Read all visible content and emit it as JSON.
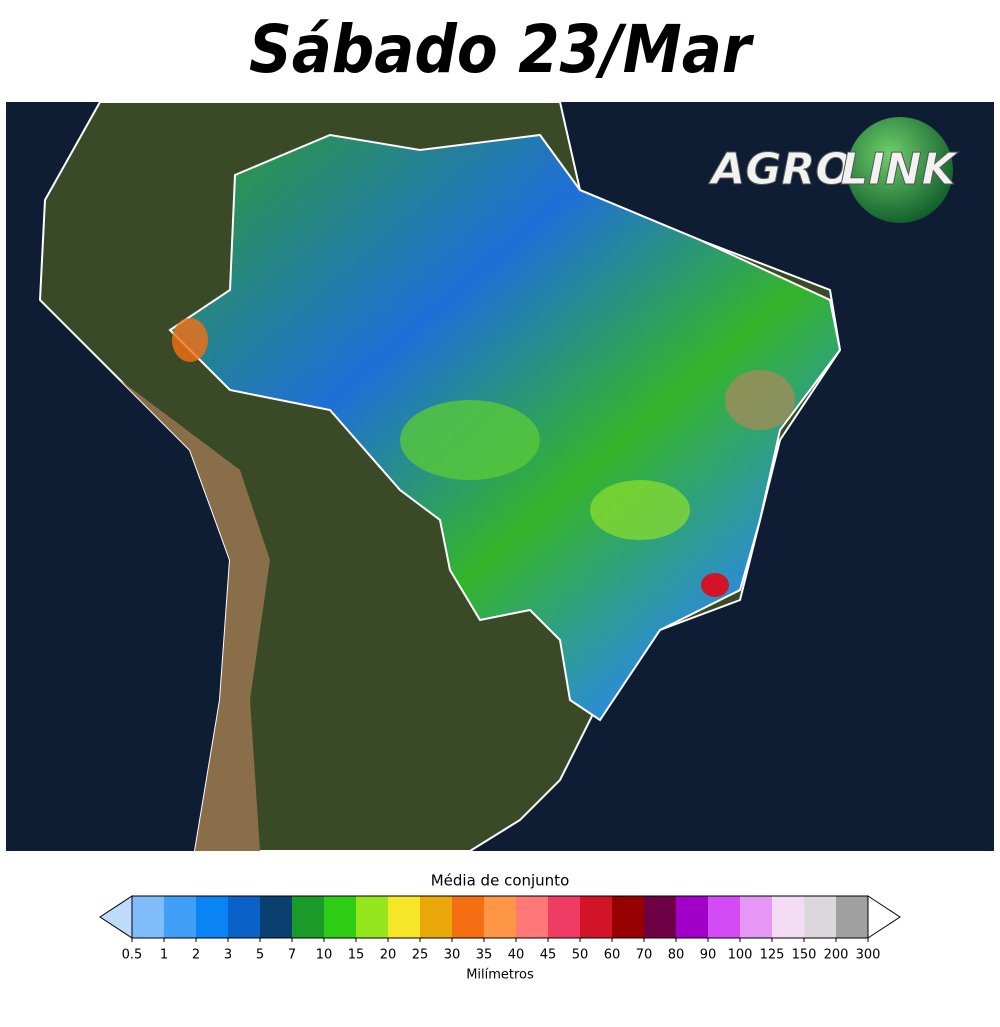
{
  "header": {
    "title": "Sábado 23/Mar"
  },
  "logo": {
    "left": "AGRO",
    "right": "LINK"
  },
  "colorbar": {
    "label": "Média de conjunto",
    "unit": "Milímetros",
    "ticks": [
      0.5,
      1,
      2,
      3,
      5,
      7,
      10,
      15,
      20,
      25,
      30,
      35,
      40,
      45,
      50,
      60,
      70,
      80,
      90,
      100,
      125,
      150,
      200,
      300
    ],
    "colors": [
      "#80bcfa",
      "#3f9ef5",
      "#0a84f5",
      "#0a62c8",
      "#0a4070",
      "#1a9a28",
      "#2ecc14",
      "#96e61e",
      "#f5e628",
      "#eaa80a",
      "#f56e14",
      "#ff9646",
      "#ff7878",
      "#f03c64",
      "#d21428",
      "#960000",
      "#6e0046",
      "#a000c8",
      "#d24bf5",
      "#e696f5",
      "#f5dcf5",
      "#dcd7dc",
      "#a0a0a0"
    ],
    "under_color": "#bedcfa",
    "over_color": "#ffffff"
  }
}
